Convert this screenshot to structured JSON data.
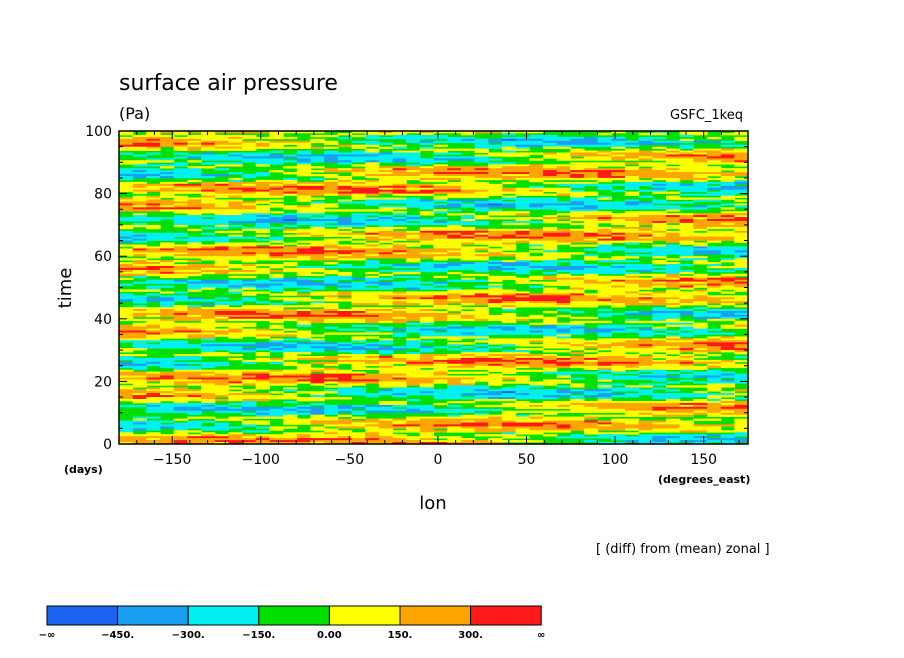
{
  "chart_data": {
    "type": "heatmap",
    "title": "surface air pressure",
    "units": "(Pa)",
    "experiment": "GSFC_1keq",
    "note": "[ (diff) from (mean) zonal ]",
    "xlabel": "lon",
    "xunits": "(degrees_east)",
    "ylabel": "time",
    "yunits": "(days)",
    "xlim": [
      -180,
      175
    ],
    "ylim": [
      0,
      100
    ],
    "xticks": [
      -150,
      -100,
      -50,
      0,
      50,
      100,
      150
    ],
    "yticks": [
      0,
      20,
      40,
      60,
      80,
      100
    ],
    "grid": false,
    "colorbar": {
      "position": "bottom",
      "labels": [
        "−∞",
        "−450.",
        "−300.",
        "−150.",
        "0.00",
        "150.",
        "300.",
        "∞"
      ],
      "colors": [
        "#1a63f0",
        "#1a9ef2",
        "#00f0f0",
        "#00e000",
        "#ffff00",
        "#ffa500",
        "#ff1a1a"
      ]
    },
    "pattern": {
      "description_levels": [
        -450,
        -300,
        -150,
        0,
        150,
        300
      ],
      "dominant_range": [
        -300,
        300
      ]
    }
  }
}
